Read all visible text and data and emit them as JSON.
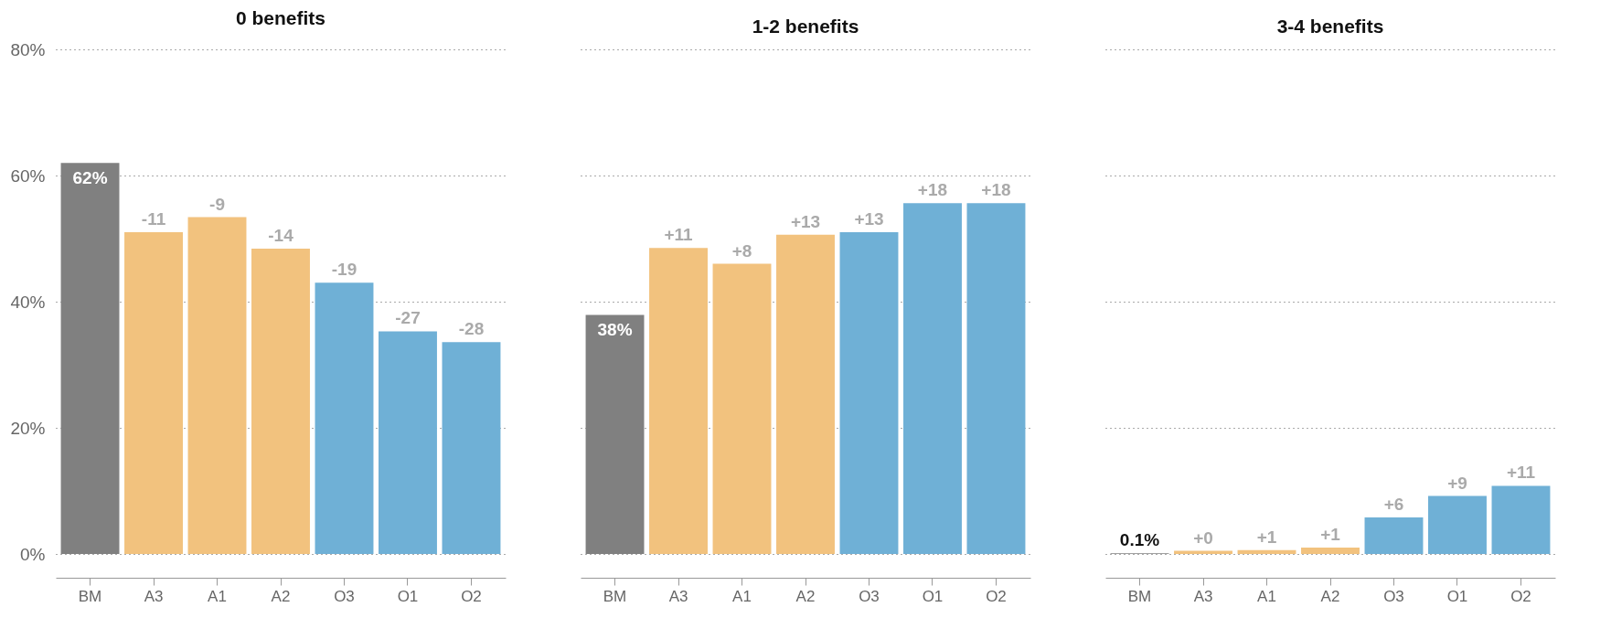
{
  "chart_data": [
    {
      "type": "bar",
      "title": "0 benefits",
      "categories": [
        "BM",
        "A3",
        "A1",
        "A2",
        "O3",
        "O1",
        "O2"
      ],
      "values": [
        62,
        51,
        53.4,
        48.4,
        43,
        35.3,
        33.6
      ],
      "colors": [
        "#808080",
        "#f2c27e",
        "#f2c27e",
        "#f2c27e",
        "#6fb0d6",
        "#6fb0d6",
        "#6fb0d6"
      ],
      "value_labels": [
        "62%",
        null,
        null,
        null,
        null,
        null,
        null
      ],
      "annotations": [
        {
          "text": "-11",
          "x": "A3",
          "y": 51
        },
        {
          "text": "-9",
          "x": "A1",
          "y": 53.4
        },
        {
          "text": "-14",
          "x": "A2",
          "y": 48.4
        },
        {
          "text": "-19",
          "x": "O3",
          "y": 43
        },
        {
          "text": "-27",
          "x": "O1",
          "y": 35.3
        },
        {
          "text": "-28",
          "x": "O2",
          "y": 33.6
        }
      ],
      "ylim": [
        0,
        80
      ],
      "yticks": [
        {
          "value": 0,
          "label": "0%"
        },
        {
          "value": 20,
          "label": "20%"
        },
        {
          "value": 40,
          "label": "40%"
        },
        {
          "value": 60,
          "label": "60%"
        },
        {
          "value": 80,
          "label": "80%"
        }
      ],
      "grid": "y"
    },
    {
      "type": "bar",
      "title": "1-2 benefits",
      "categories": [
        "BM",
        "A3",
        "A1",
        "A2",
        "O3",
        "O1",
        "O2"
      ],
      "values": [
        37.9,
        48.5,
        46,
        50.6,
        51,
        55.6,
        55.6
      ],
      "colors": [
        "#808080",
        "#f2c27e",
        "#f2c27e",
        "#f2c27e",
        "#6fb0d6",
        "#6fb0d6",
        "#6fb0d6"
      ],
      "value_labels": [
        "38%",
        null,
        null,
        null,
        null,
        null,
        null
      ],
      "annotations": [
        {
          "text": "+11",
          "x": "A3",
          "y": 48.5
        },
        {
          "text": "+8",
          "x": "A1",
          "y": 46
        },
        {
          "text": "+13",
          "x": "A2",
          "y": 50.6
        },
        {
          "text": "+13",
          "x": "O3",
          "y": 51
        },
        {
          "text": "+18",
          "x": "O1",
          "y": 55.6
        },
        {
          "text": "+18",
          "x": "O2",
          "y": 55.6
        }
      ],
      "ylim": [
        0,
        80
      ],
      "yticks": [
        0,
        20,
        40,
        60,
        80
      ],
      "grid": "y",
      "tick_labels": "x"
    },
    {
      "type": "bar",
      "title": "3-4 benefits",
      "categories": [
        "BM",
        "A3",
        "A1",
        "A2",
        "O3",
        "O1",
        "O2"
      ],
      "values": [
        0.1,
        0.5,
        0.6,
        1,
        5.8,
        9.2,
        10.8
      ],
      "colors": [
        "#808080",
        "#f2c27e",
        "#f2c27e",
        "#f2c27e",
        "#6fb0d6",
        "#6fb0d6",
        "#6fb0d6"
      ],
      "value_labels": [
        "0.1%",
        null,
        null,
        null,
        null,
        null,
        null
      ],
      "annotations": [
        {
          "text": "+0",
          "x": "A3",
          "y": 0.5
        },
        {
          "text": "+1",
          "x": "A1",
          "y": 0.6
        },
        {
          "text": "+1",
          "x": "A2",
          "y": 1
        },
        {
          "text": "+6",
          "x": "O3",
          "y": 5.8
        },
        {
          "text": "+9",
          "x": "O1",
          "y": 9.2
        },
        {
          "text": "+11",
          "x": "O2",
          "y": 10.8
        }
      ],
      "ylim": [
        0,
        80
      ],
      "yticks": [
        0,
        20,
        40,
        60,
        80
      ],
      "grid": "y",
      "tick_labels": "x"
    }
  ]
}
